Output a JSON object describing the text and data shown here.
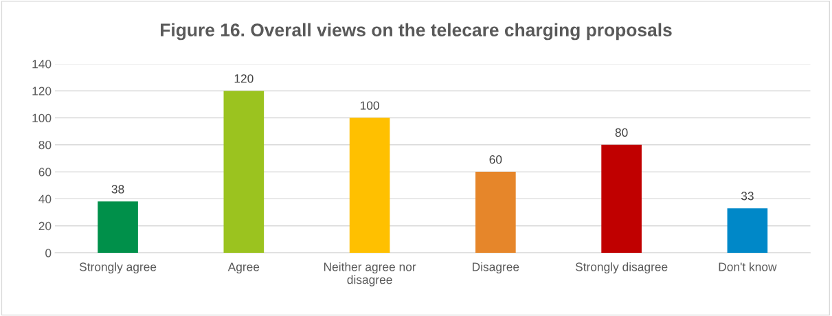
{
  "chart_data": {
    "type": "bar",
    "title": "Figure 16. Overall views on the telecare charging proposals",
    "categories": [
      "Strongly agree",
      "Agree",
      "Neither agree nor\ndisagree",
      "Disagree",
      "Strongly disagree",
      "Don't know"
    ],
    "values": [
      38,
      120,
      100,
      60,
      80,
      33
    ],
    "colors": [
      "#00904a",
      "#9bc31f",
      "#ffc000",
      "#e6862a",
      "#c00000",
      "#0088c8"
    ],
    "ylim": [
      0,
      140
    ],
    "yticks": [
      0,
      20,
      40,
      60,
      80,
      100,
      120,
      140
    ],
    "grid": "y",
    "data_labels": true,
    "legend": false
  }
}
